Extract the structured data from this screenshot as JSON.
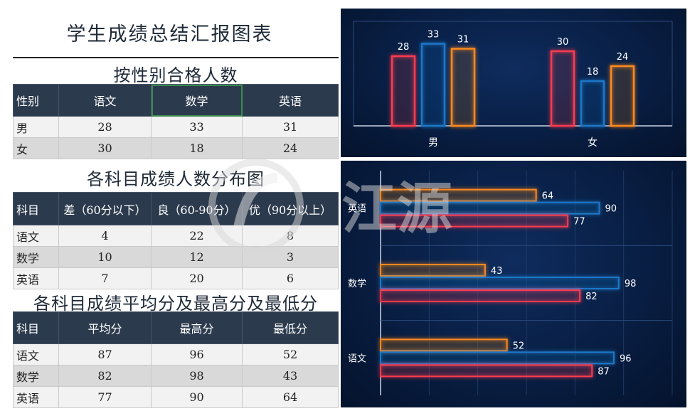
{
  "main_title": "学生成绩总结汇报图表",
  "watermark_text": "江源",
  "table1": {
    "title": "按性别合格人数",
    "headers": [
      "性别",
      "语文",
      "数学",
      "英语"
    ],
    "rows": [
      [
        "男",
        "28",
        "33",
        "31"
      ],
      [
        "女",
        "30",
        "18",
        "24"
      ]
    ]
  },
  "table2": {
    "title": "各科目成绩人数分布图",
    "headers": [
      "科目",
      "差（60分以下）",
      "良（60-90分）",
      "优（90分以上）"
    ],
    "rows": [
      [
        "语文",
        "4",
        "22",
        "8"
      ],
      [
        "数学",
        "10",
        "12",
        "3"
      ],
      [
        "英语",
        "7",
        "20",
        "6"
      ]
    ]
  },
  "table3": {
    "title": "各科目成绩平均分及最高分及最低分",
    "headers": [
      "科目",
      "平均分",
      "最高分",
      "最低分"
    ],
    "rows": [
      [
        "语文",
        "87",
        "96",
        "52"
      ],
      [
        "数学",
        "82",
        "98",
        "43"
      ],
      [
        "英语",
        "77",
        "90",
        "64"
      ]
    ]
  },
  "colors": {
    "red": "#ff3a4f",
    "blue": "#1e78c8",
    "orange": "#ff8a1e",
    "header_bg": "#2c3a4d"
  },
  "chart_data": [
    {
      "type": "bar",
      "categories": [
        "男",
        "女"
      ],
      "series": [
        {
          "values": [
            28,
            30
          ],
          "color": "#ff3a4f"
        },
        {
          "values": [
            33,
            18
          ],
          "color": "#1e78c8"
        },
        {
          "values": [
            31,
            24
          ],
          "color": "#ff8a1e"
        }
      ],
      "ylim": [
        0,
        40
      ],
      "legend": "none",
      "grid": false
    },
    {
      "type": "bar",
      "orientation": "horizontal",
      "categories": [
        "英语",
        "数学",
        "语文"
      ],
      "series": [
        {
          "values": [
            64,
            43,
            52
          ],
          "color": "#ff8a1e"
        },
        {
          "values": [
            90,
            98,
            96
          ],
          "color": "#1e78c8"
        },
        {
          "values": [
            77,
            82,
            87
          ],
          "color": "#ff3a4f"
        }
      ],
      "xlim": [
        0,
        120
      ],
      "legend": "none",
      "grid": true
    }
  ]
}
